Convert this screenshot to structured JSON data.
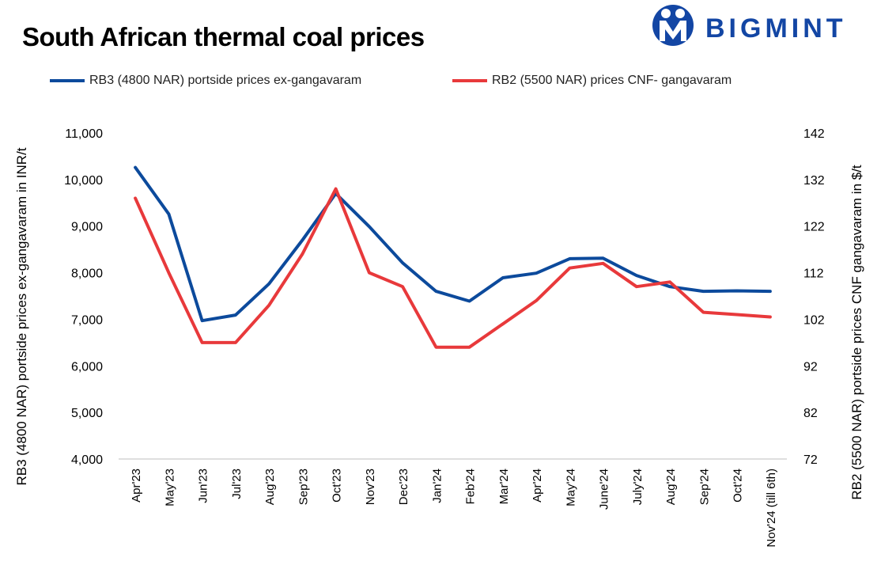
{
  "chart_data": {
    "type": "line",
    "title": "South African thermal coal prices",
    "categories": [
      "Apr'23",
      "May'23",
      "Jun'23",
      "Jul'23",
      "Aug'23",
      "Sep'23",
      "Oct'23",
      "Nov'23",
      "Dec'23",
      "Jan'24",
      "Feb'24",
      "Mar'24",
      "Apr'24",
      "May'24",
      "June'24",
      "July'24",
      "Aug'24",
      "Sep'24",
      "Oct'24",
      "Nov'24 (till 6th)"
    ],
    "series": [
      {
        "name": "RB3 (4800 NAR) portside prices ex-gangavaram",
        "axis": "left",
        "color": "#0c4a9c",
        "values": [
          10260,
          9260,
          6970,
          7090,
          7760,
          8700,
          9700,
          8990,
          8210,
          7600,
          7390,
          7890,
          7990,
          8300,
          8310,
          7940,
          7700,
          7600,
          7610,
          7600
        ]
      },
      {
        "name": "RB2 (5500 NAR) prices CNF- gangavaram",
        "axis": "right",
        "color": "#e8393b",
        "values": [
          128,
          112,
          97,
          97,
          105,
          116,
          130,
          112,
          109,
          96,
          96,
          101,
          106,
          113,
          114,
          109,
          110,
          103.5,
          103,
          102.5
        ]
      }
    ],
    "ylabel": "RB3 (4800 NAR) portside prices ex-gangavaram in INR/t",
    "ylabel_right": "RB2 (5500 NAR) portside prices CNF  gangavaram in $/t",
    "ylim": [
      4000,
      11000
    ],
    "yticks": [
      "11,000",
      "10,000",
      "9,000",
      "8,000",
      "7,000",
      "6,000",
      "5,000",
      "4,000"
    ],
    "ylim_right": [
      72,
      142
    ],
    "yticks_right": [
      "142",
      "132",
      "122",
      "112",
      "102",
      "92",
      "82",
      "72"
    ],
    "grid": false,
    "legend_position": "top"
  },
  "brand": {
    "name": "BIGMINT",
    "color": "#1346a4"
  }
}
